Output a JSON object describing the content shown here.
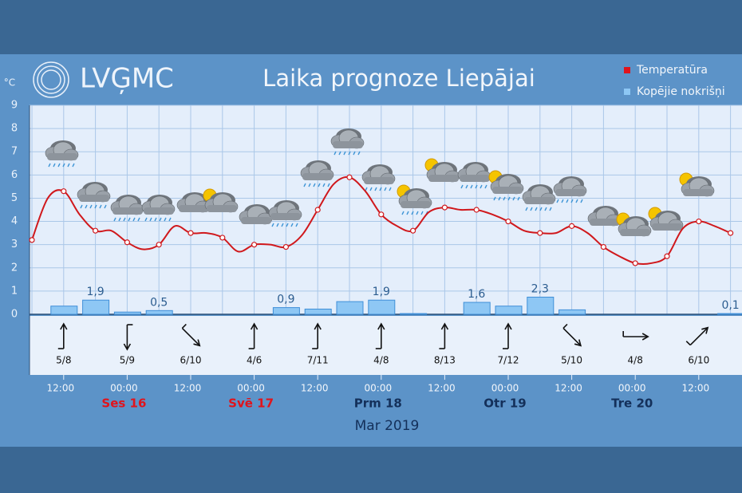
{
  "header": {
    "logo": "LVĢMC"
  },
  "chart_data": {
    "type": "line",
    "title": "Laika prognoze Liepājai",
    "y_unit": "°C",
    "x_label": "Mar 2019",
    "categories": [
      null,
      null,
      "12:00",
      null,
      null,
      null,
      "00:00",
      null,
      null,
      null,
      "12:00",
      null,
      null,
      null,
      "00:00",
      null,
      null,
      null,
      "12:00",
      null,
      null,
      null,
      "00:00",
      null,
      null,
      null,
      "12:00",
      null,
      null,
      null,
      "00:00",
      null,
      null,
      null,
      "12:00",
      null,
      null,
      null,
      "00:00",
      null,
      null,
      null,
      "12:00",
      null,
      null
    ],
    "day_labels": [
      null,
      null,
      null,
      null,
      null,
      null,
      "Ses 16",
      null,
      null,
      null,
      null,
      null,
      null,
      null,
      "Svē 17",
      null,
      null,
      null,
      null,
      null,
      null,
      null,
      "Prm 18",
      null,
      null,
      null,
      null,
      null,
      null,
      null,
      "Otr 19",
      null,
      null,
      null,
      null,
      null,
      null,
      null,
      "Tre 20",
      null,
      null,
      null,
      null,
      null,
      null
    ],
    "day_label_colors": [
      null,
      null,
      null,
      null,
      null,
      null,
      "#e0141c",
      null,
      null,
      null,
      null,
      null,
      null,
      null,
      "#e0141c",
      null,
      null,
      null,
      null,
      null,
      null,
      null,
      "#14305a",
      null,
      null,
      null,
      null,
      null,
      null,
      null,
      "#14305a",
      null,
      null,
      null,
      null,
      null,
      null,
      null,
      "#14305a",
      null,
      null,
      null,
      null,
      null,
      null
    ],
    "series": [
      {
        "name": "Temperatūra",
        "color": "#d0181c",
        "values": [
          3.2,
          5.0,
          5.3,
          4.3,
          3.6,
          3.6,
          3.1,
          2.8,
          3.0,
          3.8,
          3.5,
          3.5,
          3.3,
          2.7,
          3.0,
          3.0,
          2.9,
          3.4,
          4.5,
          5.6,
          5.9,
          5.3,
          4.3,
          3.8,
          3.6,
          4.4,
          4.6,
          4.5,
          4.5,
          4.3,
          4.0,
          3.6,
          3.5,
          3.5,
          3.8,
          3.5,
          2.9,
          2.5,
          2.2,
          2.2,
          2.5,
          3.7,
          4.0,
          3.8,
          3.5
        ]
      },
      {
        "name": "Kopējie nokrišņi",
        "color": "#8ec7f4",
        "type": "bar",
        "axis": "y2",
        "values": [
          null,
          null,
          1.1,
          null,
          1.9,
          null,
          0.3,
          null,
          0.5,
          null,
          null,
          null,
          null,
          null,
          null,
          null,
          0.9,
          null,
          0.7,
          null,
          1.7,
          null,
          1.9,
          null,
          0.1,
          null,
          null,
          null,
          1.6,
          null,
          1.1,
          null,
          2.3,
          null,
          0.6,
          null,
          null,
          null,
          null,
          null,
          null,
          null,
          null,
          null,
          0.1
        ],
        "value_labels": [
          null,
          null,
          null,
          null,
          "1,9",
          null,
          null,
          null,
          "0,5",
          null,
          null,
          null,
          null,
          null,
          null,
          null,
          "0,9",
          null,
          null,
          null,
          null,
          null,
          "1,9",
          null,
          null,
          null,
          null,
          null,
          "1,6",
          null,
          null,
          null,
          "2,3",
          null,
          null,
          null,
          null,
          null,
          null,
          null,
          null,
          null,
          null,
          null,
          "0,1"
        ]
      }
    ],
    "ylim": [
      0,
      9
    ],
    "yticks": [
      0,
      1,
      2,
      3,
      4,
      5,
      6,
      7,
      8,
      9
    ],
    "y2lim": [
      0,
      28
    ],
    "grid": true,
    "legend": "top-right",
    "wind": {
      "labels": [
        "5/8",
        "5/9",
        "6/10",
        "4/6",
        "7/11",
        "4/8",
        "8/13",
        "7/12",
        "5/10",
        "4/8",
        "6/10"
      ],
      "direction": [
        0,
        180,
        135,
        0,
        0,
        0,
        0,
        0,
        135,
        90,
        45
      ]
    }
  }
}
